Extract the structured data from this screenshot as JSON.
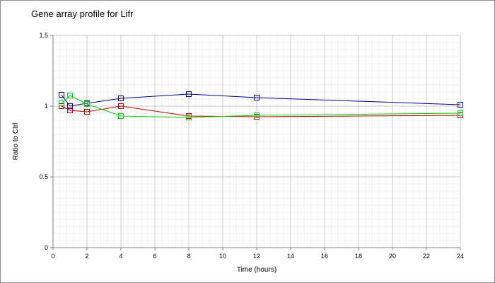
{
  "chart_data": {
    "type": "line",
    "title": "Gene array profile for Lifr",
    "xlabel": "Time (hours)",
    "ylabel": "Ratio to Ctrl",
    "xlim": [
      0,
      24
    ],
    "ylim": [
      0,
      1.5
    ],
    "x_ticks": [
      "0",
      "2",
      "4",
      "6",
      "8",
      "10",
      "12",
      "14",
      "16",
      "18",
      "20",
      "22",
      "24"
    ],
    "y_ticks": [
      "0",
      "0.5",
      "1",
      "1.5"
    ],
    "grid": true,
    "x": [
      0.5,
      1,
      2,
      4,
      8,
      12,
      24
    ],
    "series": [
      {
        "color": "#00008b",
        "values": [
          1.08,
          1.0,
          1.02,
          1.055,
          1.085,
          1.06,
          1.01
        ]
      },
      {
        "color": "#b20000",
        "values": [
          1.0,
          0.97,
          0.96,
          1.0,
          0.93,
          0.925,
          0.935
        ]
      },
      {
        "color": "#00cc00",
        "values": [
          1.02,
          1.075,
          1.015,
          0.93,
          0.92,
          0.935,
          0.95
        ]
      }
    ]
  }
}
